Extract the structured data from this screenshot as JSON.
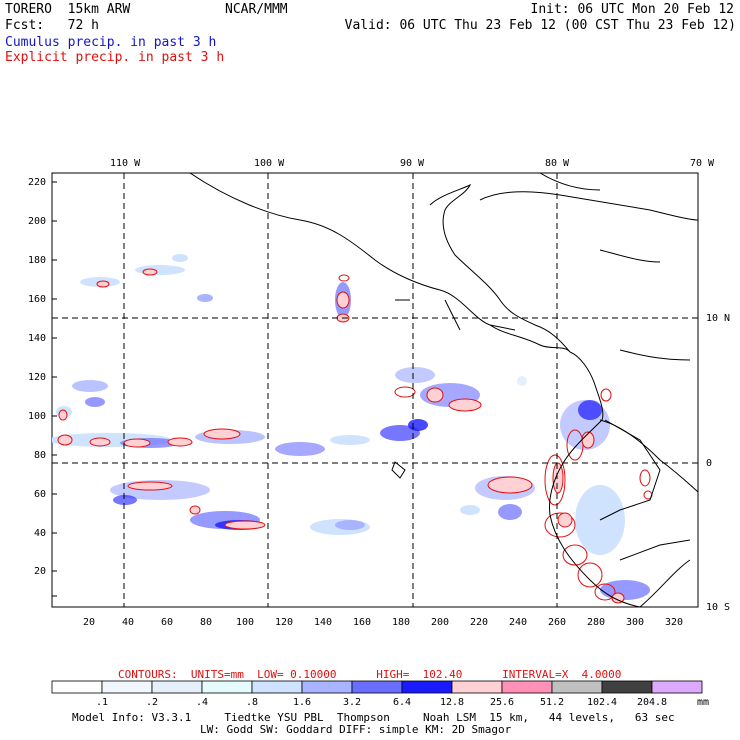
{
  "header": {
    "model": "TORERO  15km ARW",
    "org": "NCAR/MMM",
    "init": "Init: 06 UTC Mon 20 Feb 12",
    "fcst": "Fcst:   72 h",
    "valid": "Valid: 06 UTC Thu 23 Feb 12 (00 CST Thu 23 Feb 12)",
    "field1": "Cumulus precip. in past 3 h",
    "field2": "Explicit precip. in past 3 h"
  },
  "map": {
    "lon_labels": [
      "110 W",
      "100 W",
      "90 W",
      "80 W",
      "70 W"
    ],
    "lat_labels": [
      "10 N",
      "0",
      "10 S"
    ],
    "y_ticks": [
      "20",
      "40",
      "60",
      "80",
      "100",
      "120",
      "140",
      "160",
      "180",
      "200",
      "220"
    ],
    "x_ticks": [
      "20",
      "40",
      "60",
      "80",
      "100",
      "120",
      "140",
      "160",
      "180",
      "200",
      "220",
      "240",
      "260",
      "280",
      "300",
      "320"
    ]
  },
  "legend": {
    "contours_text": "CONTOURS:  UNITS=mm  LOW= 0.10000      HIGH=  102.40      INTERVAL=X  4.0000",
    "values": [
      ".1",
      ".2",
      ".4",
      ".8",
      "1.6",
      "3.2",
      "6.4",
      "12.8",
      "25.6",
      "51.2",
      "102.4",
      "204.8"
    ],
    "unit": "mm",
    "colors": [
      "#ffffff",
      "#f2f6ff",
      "#e6f0fb",
      "#e6fcfc",
      "#cfe3ff",
      "#a8b4ff",
      "#6a6eff",
      "#1a1aff",
      "#ffd0d4",
      "#ff90b8",
      "#c0c0c0",
      "#404040",
      "#dcaaff"
    ]
  },
  "footer": {
    "line1": "Model Info: V3.3.1     Tiedtke YSU PBL  Thompson     Noah LSM  15 km,   44 levels,   63 sec",
    "line2": "LW: Godd SW: Goddard DIFF: simple KM: 2D Smagor"
  }
}
